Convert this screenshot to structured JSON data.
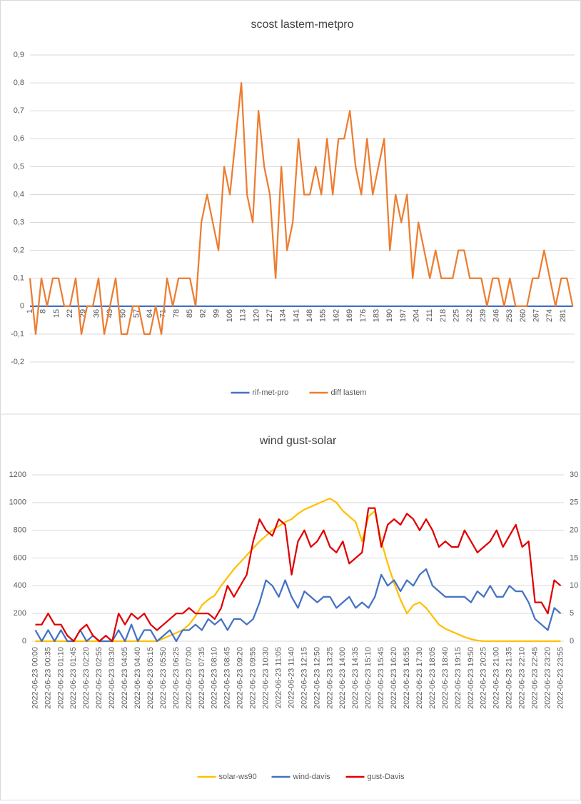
{
  "chart_data": [
    {
      "type": "line",
      "title": "scost lastem-metpro",
      "x": [
        1,
        4,
        7,
        10,
        13,
        16,
        19,
        22,
        25,
        28,
        31,
        34,
        37,
        40,
        43,
        46,
        49,
        52,
        55,
        58,
        61,
        64,
        67,
        70,
        73,
        76,
        79,
        82,
        85,
        88,
        91,
        94,
        97,
        100,
        103,
        106,
        109,
        112,
        115,
        118,
        121,
        124,
        127,
        130,
        133,
        136,
        139,
        142,
        145,
        148,
        151,
        154,
        157,
        160,
        163,
        166,
        169,
        172,
        175,
        178,
        181,
        184,
        187,
        190,
        193,
        196,
        199,
        202,
        205,
        208,
        211,
        214,
        217,
        220,
        223,
        226,
        229,
        232,
        235,
        238,
        241,
        244,
        247,
        250,
        253,
        256,
        259,
        262,
        265,
        268,
        271,
        274,
        277,
        280,
        283,
        286
      ],
      "xlim": [
        1,
        287
      ],
      "xticks": [
        1,
        8,
        15,
        22,
        29,
        36,
        43,
        50,
        57,
        64,
        71,
        78,
        85,
        92,
        99,
        106,
        113,
        120,
        127,
        134,
        141,
        148,
        155,
        162,
        169,
        176,
        183,
        190,
        197,
        204,
        211,
        218,
        225,
        232,
        239,
        246,
        253,
        260,
        267,
        274,
        281
      ],
      "ylim": [
        -0.2,
        0.9
      ],
      "yticks": [
        {
          "value": -0.2,
          "label": "-0,2"
        },
        {
          "value": -0.1,
          "label": "-0,1"
        },
        0,
        {
          "value": 0.1,
          "label": "0,1"
        },
        {
          "value": 0.2,
          "label": "0,2"
        },
        {
          "value": 0.3,
          "label": "0,3"
        },
        {
          "value": 0.4,
          "label": "0,4"
        },
        {
          "value": 0.5,
          "label": "0,5"
        },
        {
          "value": 0.6,
          "label": "0,6"
        },
        {
          "value": 0.7,
          "label": "0,7"
        },
        {
          "value": 0.8,
          "label": "0,8"
        },
        {
          "value": 0.9,
          "label": "0,9"
        }
      ],
      "grid": true,
      "legend": "bottom",
      "series": [
        {
          "name": "rif-met-pro",
          "color": "#4472c4",
          "values": [
            0,
            0,
            0,
            0,
            0,
            0,
            0,
            0,
            0,
            0,
            0,
            0,
            0,
            0,
            0,
            0,
            0,
            0,
            0,
            0,
            0,
            0,
            0,
            0,
            0,
            0,
            0,
            0,
            0,
            0,
            0,
            0,
            0,
            0,
            0,
            0,
            0,
            0,
            0,
            0,
            0,
            0,
            0,
            0,
            0,
            0,
            0,
            0,
            0,
            0,
            0,
            0,
            0,
            0,
            0,
            0,
            0,
            0,
            0,
            0,
            0,
            0,
            0,
            0,
            0,
            0,
            0,
            0,
            0,
            0,
            0,
            0,
            0,
            0,
            0,
            0,
            0,
            0,
            0,
            0,
            0,
            0,
            0,
            0,
            0,
            0,
            0,
            0,
            0,
            0,
            0,
            0,
            0,
            0,
            0,
            0
          ]
        },
        {
          "name": "diff lastem",
          "color": "#ed7d31",
          "values": [
            0.1,
            -0.1,
            0.1,
            0,
            0.1,
            0.1,
            0,
            0,
            0.1,
            -0.1,
            0,
            0,
            0.1,
            -0.1,
            0,
            0.1,
            -0.1,
            -0.1,
            0,
            0,
            -0.1,
            -0.1,
            0,
            -0.1,
            0.1,
            0,
            0.1,
            0.1,
            0.1,
            0,
            0.3,
            0.4,
            0.3,
            0.2,
            0.5,
            0.4,
            0.6,
            0.8,
            0.4,
            0.3,
            0.7,
            0.5,
            0.4,
            0.1,
            0.5,
            0.2,
            0.3,
            0.6,
            0.4,
            0.4,
            0.5,
            0.4,
            0.6,
            0.4,
            0.6,
            0.6,
            0.7,
            0.5,
            0.4,
            0.6,
            0.4,
            0.5,
            0.6,
            0.2,
            0.4,
            0.3,
            0.4,
            0.1,
            0.3,
            0.2,
            0.1,
            0.2,
            0.1,
            0.1,
            0.1,
            0.2,
            0.2,
            0.1,
            0.1,
            0.1,
            0,
            0.1,
            0.1,
            0,
            0.1,
            0,
            0,
            0,
            0.1,
            0.1,
            0.2,
            0.1,
            0,
            0.1,
            0.1,
            0
          ]
        }
      ]
    },
    {
      "type": "line",
      "title": "wind gust-solar",
      "categories": [
        "2022-06-23 00:00",
        null,
        "2022-06-23 00:35",
        null,
        "2022-06-23 01:10",
        null,
        "2022-06-23 01:45",
        null,
        "2022-06-23 02:20",
        null,
        "2022-06-23 02:55",
        null,
        "2022-06-23 03:30",
        null,
        "2022-06-23 04:05",
        null,
        "2022-06-23 04:40",
        null,
        "2022-06-23 05:15",
        null,
        "2022-06-23 05:50",
        null,
        "2022-06-23 06:25",
        null,
        "2022-06-23 07:00",
        null,
        "2022-06-23 07:35",
        null,
        "2022-06-23 08:10",
        null,
        "2022-06-23 08:45",
        null,
        "2022-06-23 09:20",
        null,
        "2022-06-23 09:55",
        null,
        "2022-06-23 10:30",
        null,
        "2022-06-23 11:05",
        null,
        "2022-06-23 11:40",
        null,
        "2022-06-23 12:15",
        null,
        "2022-06-23 12:50",
        null,
        "2022-06-23 13:25",
        null,
        "2022-06-23 14:00",
        null,
        "2022-06-23 14:35",
        null,
        "2022-06-23 15:10",
        null,
        "2022-06-23 15:45",
        null,
        "2022-06-23 16:20",
        null,
        "2022-06-23 16:55",
        null,
        "2022-06-23 17:30",
        null,
        "2022-06-23 18:05",
        null,
        "2022-06-23 18:40",
        null,
        "2022-06-23 19:15",
        null,
        "2022-06-23 19:50",
        null,
        "2022-06-23 20:25",
        null,
        "2022-06-23 21:00",
        null,
        "2022-06-23 21:35",
        null,
        "2022-06-23 22:10",
        null,
        "2022-06-23 22:45",
        null,
        "2022-06-23 23:20",
        null,
        "2022-06-23 23:55"
      ],
      "ylim": [
        0,
        1200
      ],
      "yticks": [
        0,
        200,
        400,
        600,
        800,
        1000,
        1200
      ],
      "y2lim": [
        0,
        30
      ],
      "y2ticks": [
        0,
        5,
        10,
        15,
        20,
        25,
        30
      ],
      "grid": true,
      "legend": "bottom",
      "series": [
        {
          "name": "solar-ws90",
          "color": "#ffc000",
          "values": [
            0,
            0,
            0,
            0,
            0,
            0,
            0,
            0,
            0,
            0,
            0,
            0,
            0,
            0,
            0,
            0,
            0,
            0,
            0,
            0,
            20,
            40,
            60,
            80,
            120,
            180,
            260,
            300,
            330,
            400,
            460,
            520,
            570,
            620,
            670,
            720,
            760,
            800,
            830,
            860,
            880,
            920,
            950,
            970,
            990,
            1010,
            1030,
            1000,
            940,
            900,
            860,
            720,
            900,
            940,
            720,
            560,
            420,
            300,
            200,
            260,
            280,
            240,
            180,
            120,
            90,
            70,
            50,
            30,
            15,
            5,
            0,
            0,
            0,
            0,
            0,
            0,
            0,
            0,
            0,
            0,
            0,
            0,
            0
          ]
        },
        {
          "name": "wind-davis",
          "color": "#4472c4",
          "axis": "y2",
          "values": [
            2,
            0,
            2,
            0,
            2,
            0,
            0,
            2,
            0,
            1,
            0,
            0,
            0,
            2,
            0,
            3,
            0,
            2,
            2,
            0,
            1,
            2,
            0,
            2,
            2,
            3,
            2,
            4,
            3,
            4,
            2,
            4,
            4,
            3,
            4,
            7,
            11,
            10,
            8,
            11,
            8,
            6,
            9,
            8,
            7,
            8,
            8,
            6,
            7,
            8,
            6,
            7,
            6,
            8,
            12,
            10,
            11,
            9,
            11,
            10,
            12,
            13,
            10,
            9,
            8,
            8,
            8,
            8,
            7,
            9,
            8,
            10,
            8,
            8,
            10,
            9,
            9,
            7,
            4,
            3,
            2,
            6,
            5
          ]
        },
        {
          "name": "gust-Davis",
          "color": "#e00000",
          "axis": "y2",
          "values": [
            3,
            3,
            5,
            3,
            3,
            1,
            0,
            2,
            3,
            1,
            0,
            1,
            0,
            5,
            3,
            5,
            4,
            5,
            3,
            2,
            3,
            4,
            5,
            5,
            6,
            5,
            5,
            5,
            4,
            6,
            10,
            8,
            10,
            12,
            18,
            22,
            20,
            19,
            22,
            21,
            12,
            18,
            20,
            17,
            18,
            20,
            17,
            16,
            18,
            14,
            15,
            16,
            24,
            24,
            17,
            21,
            22,
            21,
            23,
            22,
            20,
            22,
            20,
            17,
            18,
            17,
            17,
            20,
            18,
            16,
            17,
            18,
            20,
            17,
            19,
            21,
            17,
            18,
            7,
            7,
            5,
            11,
            10
          ]
        }
      ]
    }
  ]
}
